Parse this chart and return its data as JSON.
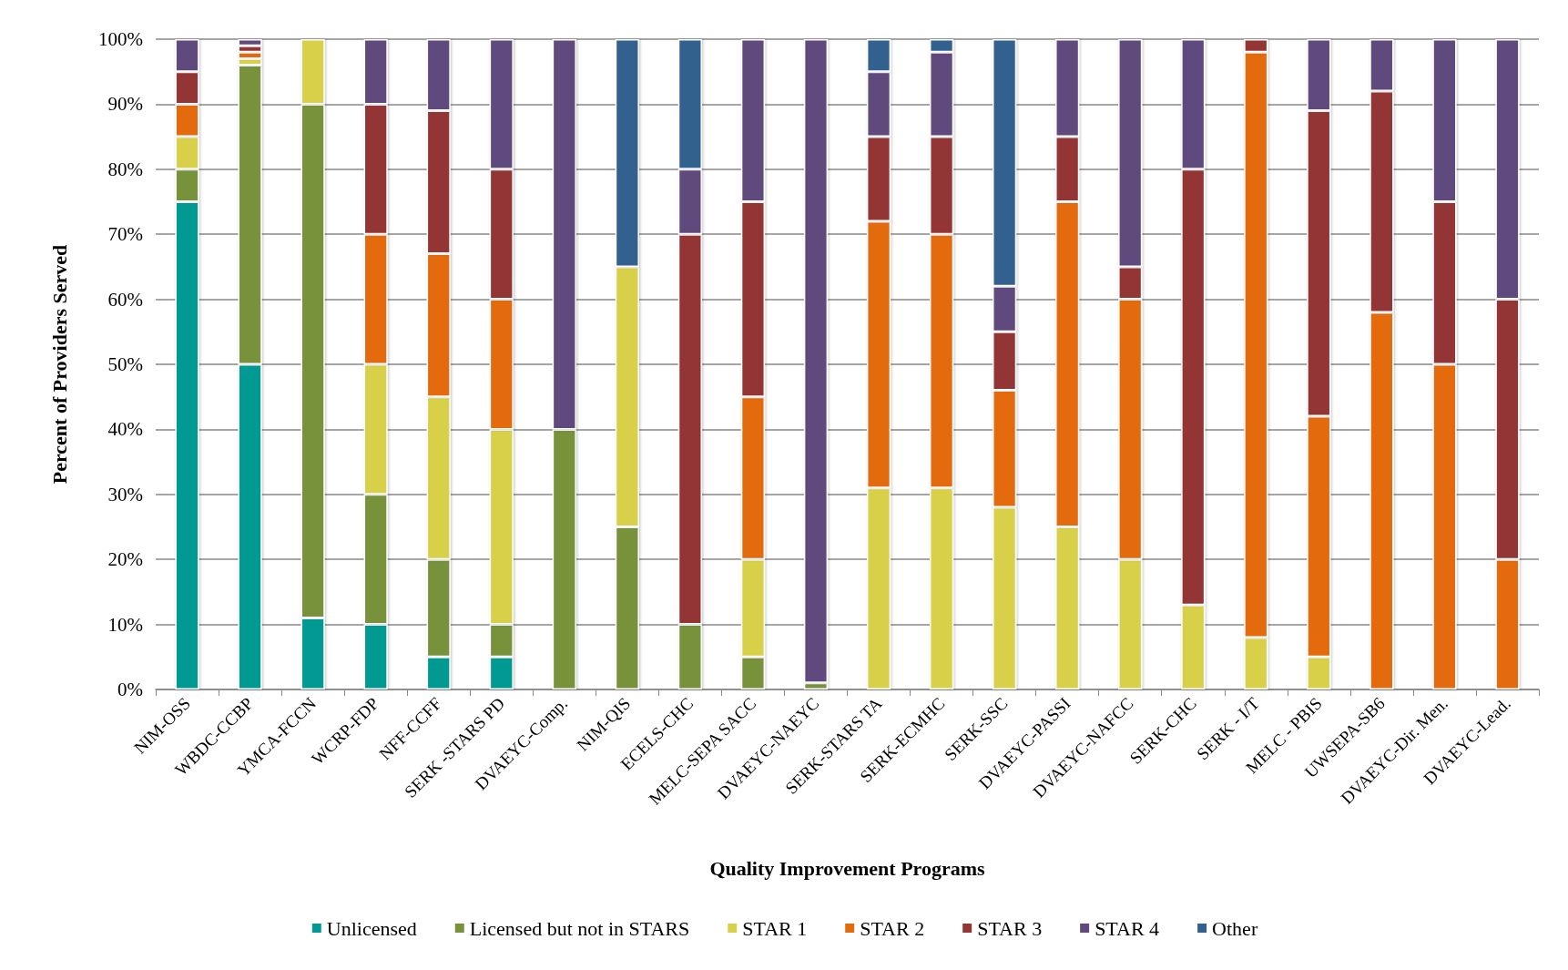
{
  "chart_data": {
    "type": "bar",
    "stacked": true,
    "xlabel": "Quality Improvement Programs",
    "ylabel": "Percent of Providers Served",
    "categories": [
      "NIM-OSS",
      "WBDC-CCBP",
      "YMCA-FCCN",
      "WCRP-FDP",
      "NFF-CCFF",
      "SERK -STARS PD",
      "DVAEYC-Comp.",
      "NIM-QIS",
      "ECELS-CHC",
      "MELC-SEPA SACC",
      "DVAEYC-NAEYC",
      "SERK-STARS TA",
      "SERK-ECMHC",
      "SERK-SSC",
      "DVAEYC-PASSI",
      "DVAEYC-NAFCC",
      "SERK-CHC",
      "SERK - I/T",
      "MELC - PBIS",
      "UWSEPA-SB6",
      "DVAEYC-Dir. Men.",
      "DVAEYC-Lead."
    ],
    "series": [
      {
        "name": "Unlicensed",
        "color": "#009a93",
        "values": [
          75,
          50,
          11,
          10,
          5,
          5,
          null,
          null,
          null,
          null,
          null,
          null,
          null,
          null,
          null,
          null,
          null,
          null,
          null,
          null,
          null,
          null
        ]
      },
      {
        "name": "Licensed but not in STARS",
        "color": "#77923b",
        "values": [
          5,
          46,
          79,
          20,
          15,
          5,
          40,
          25,
          10,
          5,
          1,
          null,
          null,
          null,
          null,
          null,
          null,
          null,
          null,
          null,
          null,
          null
        ]
      },
      {
        "name": "STAR 1",
        "color": "#d8d04a",
        "values": [
          5,
          1,
          10,
          20,
          25,
          30,
          null,
          40,
          null,
          15,
          null,
          31,
          31,
          28,
          25,
          20,
          13,
          8,
          5,
          null,
          null,
          null
        ]
      },
      {
        "name": "STAR 2",
        "color": "#e36b0c",
        "values": [
          5,
          1,
          null,
          20,
          22,
          20,
          null,
          null,
          null,
          25,
          null,
          41,
          39,
          18,
          50,
          40,
          null,
          90,
          37,
          58,
          50,
          20
        ]
      },
      {
        "name": "STAR 3",
        "color": "#943634",
        "values": [
          5,
          1,
          null,
          20,
          22,
          20,
          null,
          null,
          60,
          30,
          null,
          13,
          15,
          9,
          10,
          5,
          67,
          2,
          47,
          34,
          25,
          40
        ]
      },
      {
        "name": "STAR 4",
        "color": "#604a7b",
        "values": [
          5,
          1,
          null,
          10,
          11,
          20,
          60,
          null,
          10,
          25,
          99,
          10,
          13,
          7,
          15,
          35,
          20,
          null,
          11,
          8,
          25,
          40
        ]
      },
      {
        "name": "Other",
        "color": "#33608f",
        "values": [
          null,
          null,
          null,
          null,
          null,
          null,
          null,
          35,
          20,
          null,
          null,
          5,
          2,
          38,
          null,
          null,
          null,
          null,
          null,
          null,
          null,
          null
        ]
      }
    ],
    "ylim": [
      0,
      100
    ],
    "yticks": [
      {
        "value": 0,
        "label": "0%"
      },
      {
        "value": 10,
        "label": "10%"
      },
      {
        "value": 20,
        "label": "20%"
      },
      {
        "value": 30,
        "label": "30%"
      },
      {
        "value": 40,
        "label": "40%"
      },
      {
        "value": 50,
        "label": "50%"
      },
      {
        "value": 60,
        "label": "60%"
      },
      {
        "value": 70,
        "label": "70%"
      },
      {
        "value": 80,
        "label": "80%"
      },
      {
        "value": 90,
        "label": "90%"
      },
      {
        "value": 100,
        "label": "100%"
      }
    ],
    "grid": "y",
    "legend": "bottom"
  }
}
